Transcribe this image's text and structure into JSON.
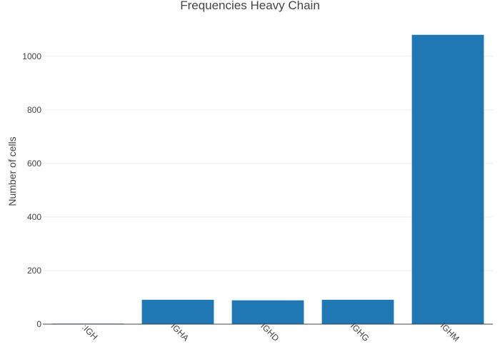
{
  "chart_data": {
    "type": "bar",
    "title": "Frequencies Heavy Chain",
    "xlabel": "",
    "ylabel": "Number of cells",
    "categories": [
      ":IGH",
      "IGHA",
      "IGHD",
      "IGHG",
      "IGHM"
    ],
    "values": [
      2,
      91,
      89,
      91,
      1080
    ],
    "ylim": [
      0,
      1130
    ],
    "yticks": [
      0,
      200,
      400,
      600,
      800,
      1000
    ],
    "grid": true,
    "legend": "none",
    "bar_color": "#1f77b4"
  }
}
